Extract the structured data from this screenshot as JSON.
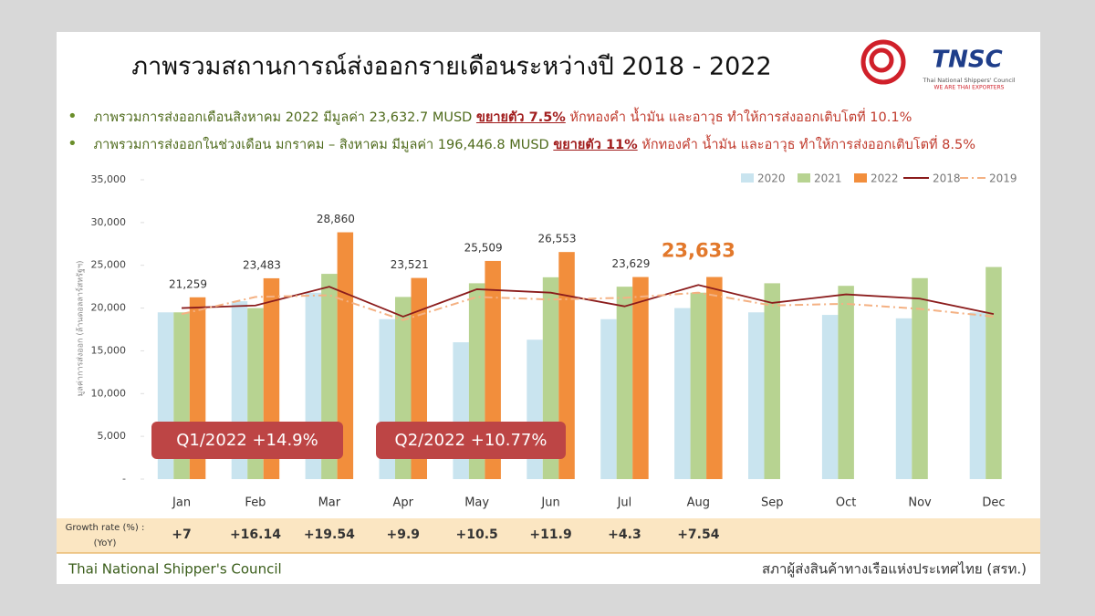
{
  "header": {
    "title": "ภาพรวมสถานการณ์ส่งออกรายเดือนระหว่างปี 2018 - 2022",
    "logo": {
      "name": "TNSC",
      "line1": "Thai National Shippers' Council",
      "line2": "WE ARE THAI EXPORTERS"
    },
    "bullets": [
      [
        "ภาพรวมการส่งออกเดือนสิงหาคม 2022 มีมูลค่า 23,632.7 MUSD ",
        "ขยายตัว 7.5%",
        " หักทองคำ น้ำมัน และอาวุธ ทำให้การส่งออกเติบโตที่ 10.1%"
      ],
      [
        "ภาพรวมการส่งออกในช่วงเดือน มกราคม – สิงหาคม มีมูลค่า 196,446.8 MUSD ",
        "ขยายตัว 11%",
        " หักทองคำ น้ำมัน และอาวุธ ทำให้การส่งออกเติบโตที่ 8.5%"
      ]
    ]
  },
  "chart_data": {
    "type": "bar",
    "y_label": "มูลค่าการส่งออก (ล้านดอลลาร์สหรัฐฯ)",
    "categories": [
      "Jan",
      "Feb",
      "Mar",
      "Apr",
      "May",
      "Jun",
      "Jul",
      "Aug",
      "Sep",
      "Oct",
      "Nov",
      "Dec"
    ],
    "series": [
      {
        "name": "2020",
        "type": "bar",
        "color": "#c9e4ef",
        "values": [
          19500,
          20800,
          21800,
          18700,
          16000,
          16300,
          18700,
          20000,
          19500,
          19200,
          18800,
          19500
        ]
      },
      {
        "name": "2021",
        "type": "bar",
        "color": "#b7d391",
        "values": [
          19500,
          20000,
          24000,
          21300,
          22900,
          23600,
          22500,
          21800,
          22900,
          22600,
          23500,
          24800
        ]
      },
      {
        "name": "2022",
        "type": "bar",
        "color": "#f28e3c",
        "values": [
          21259,
          23483,
          28860,
          23521,
          25509,
          26553,
          23629,
          23633,
          null,
          null,
          null,
          null
        ],
        "value_labels": [
          "21,259",
          "23,483",
          "28,860",
          "23,521",
          "25,509",
          "26,553",
          "23,629",
          "23,633",
          null,
          null,
          null,
          null
        ]
      },
      {
        "name": "2018",
        "type": "line",
        "color": "#8b1c1c",
        "values": [
          20000,
          20300,
          22500,
          19000,
          22200,
          21800,
          20200,
          22700,
          20600,
          21600,
          21100,
          19300
        ]
      },
      {
        "name": "2019",
        "type": "line",
        "dashed": true,
        "color": "#f4b183",
        "values": [
          19300,
          21300,
          21500,
          18600,
          21300,
          21000,
          21200,
          21800,
          20300,
          20500,
          19900,
          19000
        ]
      }
    ],
    "ylim": [
      0,
      35000
    ],
    "yticks": [
      {
        "value": 0,
        "label": "-"
      },
      {
        "value": 5000,
        "label": "5,000"
      },
      {
        "value": 10000,
        "label": "10,000"
      },
      {
        "value": 15000,
        "label": "15,000"
      },
      {
        "value": 20000,
        "label": "20,000"
      },
      {
        "value": 25000,
        "label": "25,000"
      },
      {
        "value": 30000,
        "label": "30,000"
      },
      {
        "value": 35000,
        "label": "35,000"
      }
    ],
    "grid": false,
    "legend": "top-right",
    "annotations": [
      "Q1/2022 +14.9%",
      "Q2/2022 +10.77%"
    ],
    "growth_label": [
      "Growth rate (%) :",
      "(YoY)"
    ],
    "growth_rates": [
      "+7",
      "+16.14",
      "+19.54",
      "+9.9",
      "+10.5",
      "+11.9",
      "+4.3",
      "+7.54",
      null,
      null,
      null,
      null
    ]
  },
  "footer": {
    "left": "Thai National Shipper's Council",
    "right": "สภาผู้ส่งสินค้าทางเรือแห่งประเทศไทย (สรท.)"
  }
}
